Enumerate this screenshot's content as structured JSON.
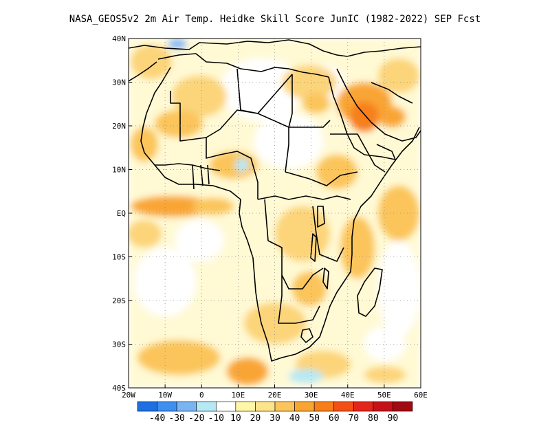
{
  "title": "NASA_GEOS5v2  2m Air Temp. Heidke Skill Score JunIC (1982-2022) SEP Fcst",
  "map": {
    "lon_range": [
      -20,
      60
    ],
    "lat_range": [
      -40,
      40
    ],
    "lon_ticks": [
      "20W",
      "10W",
      "0",
      "10E",
      "20E",
      "30E",
      "40E",
      "50E",
      "60E"
    ],
    "lat_ticks": [
      "40N",
      "30N",
      "20N",
      "10N",
      "EQ",
      "10S",
      "20S",
      "30S",
      "40S"
    ],
    "grid": "dotted"
  },
  "colorbar": {
    "labels": [
      "-40",
      "-30",
      "-20",
      "-10",
      "10",
      "20",
      "30",
      "40",
      "50",
      "60",
      "70",
      "80",
      "90"
    ],
    "colors": [
      "#1e6fe0",
      "#3f8ff0",
      "#79b5f3",
      "#b5e9f5",
      "#ffffff",
      "#fff6a8",
      "#fde48a",
      "#fbc55c",
      "#f9a534",
      "#f77f1a",
      "#f25016",
      "#e3261b",
      "#c5121a",
      "#a10a12"
    ],
    "accent_colors": {
      "land_high": "#f77f1a",
      "land_mid": "#fbc55c",
      "low": "#fff6a8"
    }
  }
}
